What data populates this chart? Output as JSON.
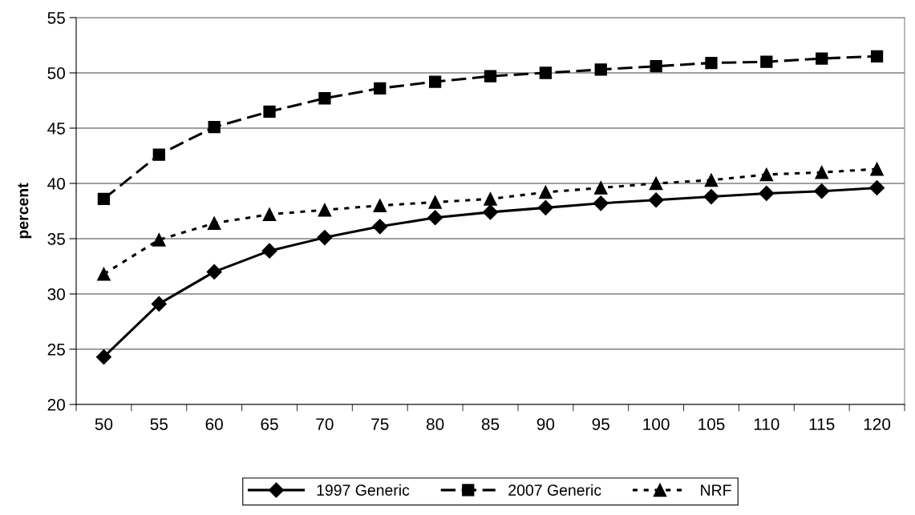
{
  "chart_data": {
    "type": "line",
    "ylabel": "percent",
    "categories": [
      "50",
      "55",
      "60",
      "65",
      "70",
      "75",
      "80",
      "85",
      "90",
      "95",
      "100",
      "105",
      "110",
      "115",
      "120"
    ],
    "series": [
      {
        "name": "1997 Generic",
        "color": "#000000",
        "marker": "diamond",
        "line_style": "solid",
        "values": [
          24.3,
          29.1,
          32.0,
          33.9,
          35.1,
          36.1,
          36.9,
          37.4,
          37.8,
          38.2,
          38.5,
          38.8,
          39.1,
          39.3,
          39.6
        ]
      },
      {
        "name": "2007 Generic",
        "color": "#000000",
        "marker": "square",
        "line_style": "dashed",
        "values": [
          38.6,
          42.6,
          45.1,
          46.5,
          47.7,
          48.6,
          49.2,
          49.7,
          50.0,
          50.3,
          50.6,
          50.9,
          51.0,
          51.3,
          51.5
        ]
      },
      {
        "name": "NRF",
        "color": "#000000",
        "marker": "triangle",
        "line_style": "dotted",
        "values": [
          31.8,
          34.9,
          36.4,
          37.2,
          37.6,
          38.0,
          38.3,
          38.6,
          39.2,
          39.6,
          40.0,
          40.3,
          40.8,
          41.0,
          41.3
        ]
      }
    ],
    "ylim": [
      20,
      55
    ],
    "yticks": [
      20,
      25,
      30,
      35,
      40,
      45,
      50,
      55
    ],
    "grid": "y",
    "legend": "bottom"
  }
}
